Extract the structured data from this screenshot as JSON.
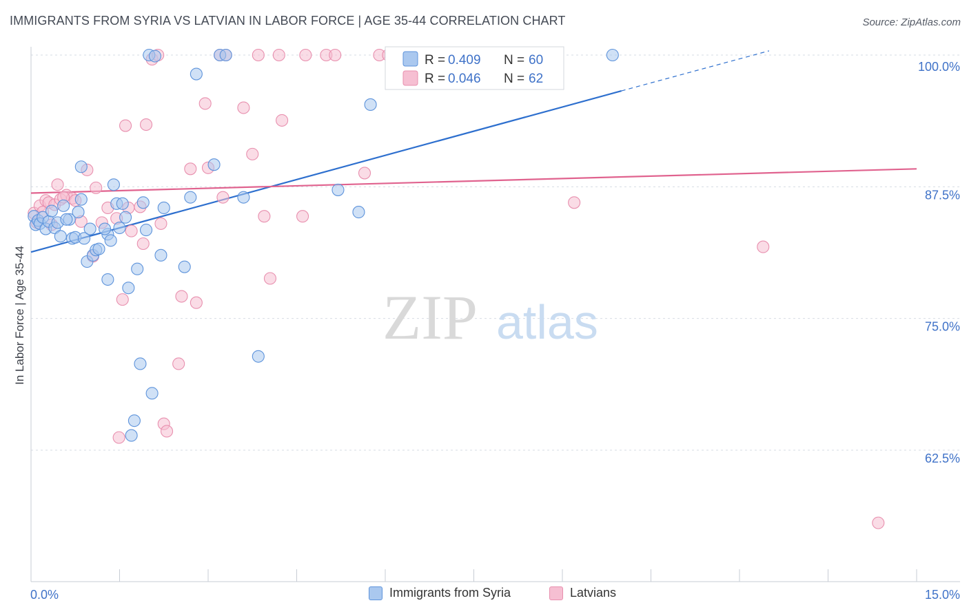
{
  "title": "IMMIGRANTS FROM SYRIA VS LATVIAN IN LABOR FORCE | AGE 35-44 CORRELATION CHART",
  "source": "Source: ZipAtlas.com",
  "watermark": {
    "zip": "ZIP",
    "atlas": "atlas"
  },
  "colors": {
    "blue_fill": "#aac8ef",
    "blue_stroke": "#5d93db",
    "blue_line": "#2d6fce",
    "pink_fill": "#f6bfd2",
    "pink_stroke": "#e88fae",
    "pink_line": "#e0628e",
    "tick_text": "#3f72c8",
    "grid": "#d6dbe3"
  },
  "legend": {
    "rows": [
      {
        "r_label": "R =",
        "r_value": "0.409",
        "n_label": "N =",
        "n_value": "60"
      },
      {
        "r_label": "R =",
        "r_value": "0.046",
        "n_label": "N =",
        "n_value": "62"
      }
    ]
  },
  "bottom_legend": {
    "blue": "Immigrants from Syria",
    "pink": "Latvians"
  },
  "chart_data": {
    "type": "scatter",
    "title": "IMMIGRANTS FROM SYRIA VS LATVIAN IN LABOR FORCE | AGE 35-44 CORRELATION CHART",
    "xlabel": "",
    "ylabel": "In Labor Force | Age 35-44",
    "xlim": [
      0,
      15
    ],
    "ylim": [
      52,
      102
    ],
    "x_tick_labels": [
      "0.0%",
      "15.0%"
    ],
    "y_tick_labels": [
      "100.0%",
      "87.5%",
      "75.0%",
      "62.5%"
    ],
    "y_ticks": [
      100,
      87.5,
      75,
      62.5
    ],
    "grid": true,
    "legend_position": "top-center",
    "series": [
      {
        "name": "Immigrants from Syria",
        "r": 0.409,
        "n": 60,
        "trend": {
          "x": [
            0,
            10.0
          ],
          "y": [
            81.3,
            96.6
          ],
          "dashed_to": [
            12.5,
            100.4
          ]
        },
        "points": [
          [
            0.05,
            84.7
          ],
          [
            0.08,
            83.9
          ],
          [
            0.12,
            84.3
          ],
          [
            0.15,
            84.0
          ],
          [
            0.2,
            84.6
          ],
          [
            0.25,
            83.5
          ],
          [
            0.3,
            84.2
          ],
          [
            0.35,
            85.2
          ],
          [
            0.4,
            83.6
          ],
          [
            0.45,
            84.1
          ],
          [
            0.5,
            82.8
          ],
          [
            0.55,
            85.7
          ],
          [
            0.65,
            84.4
          ],
          [
            0.7,
            82.6
          ],
          [
            0.75,
            82.7
          ],
          [
            0.8,
            85.1
          ],
          [
            0.85,
            86.3
          ],
          [
            0.9,
            82.6
          ],
          [
            0.95,
            80.4
          ],
          [
            1.0,
            83.5
          ],
          [
            1.05,
            81.0
          ],
          [
            1.1,
            81.5
          ],
          [
            1.15,
            81.6
          ],
          [
            1.3,
            83.0
          ],
          [
            1.3,
            78.7
          ],
          [
            1.35,
            82.4
          ],
          [
            1.4,
            87.7
          ],
          [
            1.45,
            85.9
          ],
          [
            1.5,
            83.6
          ],
          [
            1.55,
            85.9
          ],
          [
            1.6,
            84.6
          ],
          [
            1.65,
            77.9
          ],
          [
            1.8,
            79.7
          ],
          [
            1.85,
            70.7
          ],
          [
            1.9,
            86.0
          ],
          [
            1.95,
            83.4
          ],
          [
            2.0,
            100.0
          ],
          [
            2.05,
            67.9
          ],
          [
            2.1,
            99.9
          ],
          [
            2.2,
            81.0
          ],
          [
            2.25,
            85.5
          ],
          [
            2.6,
            79.9
          ],
          [
            2.7,
            86.5
          ],
          [
            2.8,
            98.2
          ],
          [
            3.1,
            89.6
          ],
          [
            3.2,
            100.0
          ],
          [
            3.3,
            100.0
          ],
          [
            3.6,
            86.5
          ],
          [
            3.85,
            71.4
          ],
          [
            5.75,
            95.3
          ],
          [
            5.2,
            87.2
          ],
          [
            5.55,
            85.1
          ],
          [
            7.2,
            100.0
          ],
          [
            8.6,
            100.0
          ],
          [
            9.85,
            100.0
          ],
          [
            1.75,
            65.3
          ],
          [
            1.7,
            63.9
          ],
          [
            0.85,
            89.4
          ],
          [
            1.25,
            83.5
          ],
          [
            0.6,
            84.4
          ]
        ]
      },
      {
        "name": "Latvians",
        "r": 0.046,
        "n": 62,
        "trend": {
          "x": [
            0,
            15
          ],
          "y": [
            86.9,
            89.2
          ]
        },
        "points": [
          [
            0.05,
            85.0
          ],
          [
            0.1,
            84.1
          ],
          [
            0.15,
            85.7
          ],
          [
            0.2,
            85.1
          ],
          [
            0.25,
            86.2
          ],
          [
            0.3,
            86.0
          ],
          [
            0.4,
            85.8
          ],
          [
            0.45,
            87.7
          ],
          [
            0.5,
            86.3
          ],
          [
            0.6,
            86.7
          ],
          [
            0.7,
            86.4
          ],
          [
            0.75,
            86.2
          ],
          [
            0.85,
            84.2
          ],
          [
            0.95,
            89.1
          ],
          [
            1.05,
            80.9
          ],
          [
            1.1,
            87.4
          ],
          [
            1.2,
            84.1
          ],
          [
            1.3,
            85.5
          ],
          [
            1.45,
            84.5
          ],
          [
            1.55,
            76.8
          ],
          [
            1.6,
            93.3
          ],
          [
            1.65,
            85.5
          ],
          [
            1.7,
            83.3
          ],
          [
            1.85,
            85.6
          ],
          [
            1.9,
            82.1
          ],
          [
            1.95,
            93.4
          ],
          [
            2.05,
            99.6
          ],
          [
            2.15,
            100.0
          ],
          [
            2.2,
            84.0
          ],
          [
            2.25,
            65.0
          ],
          [
            2.3,
            64.3
          ],
          [
            2.5,
            70.7
          ],
          [
            2.55,
            77.1
          ],
          [
            2.7,
            89.2
          ],
          [
            2.8,
            76.5
          ],
          [
            2.95,
            95.4
          ],
          [
            3.0,
            89.3
          ],
          [
            3.3,
            100.0
          ],
          [
            3.25,
            86.5
          ],
          [
            3.6,
            95.0
          ],
          [
            3.75,
            90.6
          ],
          [
            3.85,
            100.0
          ],
          [
            3.95,
            84.7
          ],
          [
            4.05,
            78.8
          ],
          [
            4.2,
            100.0
          ],
          [
            4.25,
            93.8
          ],
          [
            4.6,
            84.7
          ],
          [
            4.65,
            100.0
          ],
          [
            5.0,
            100.0
          ],
          [
            5.15,
            100.0
          ],
          [
            5.65,
            88.8
          ],
          [
            5.9,
            100.0
          ],
          [
            6.05,
            100.0
          ],
          [
            6.6,
            100.0
          ],
          [
            7.2,
            100.0
          ],
          [
            9.2,
            86.0
          ],
          [
            12.4,
            81.8
          ],
          [
            14.35,
            55.6
          ],
          [
            1.49,
            63.7
          ],
          [
            3.2,
            100.0
          ],
          [
            0.35,
            83.9
          ],
          [
            0.55,
            86.5
          ]
        ]
      }
    ]
  }
}
